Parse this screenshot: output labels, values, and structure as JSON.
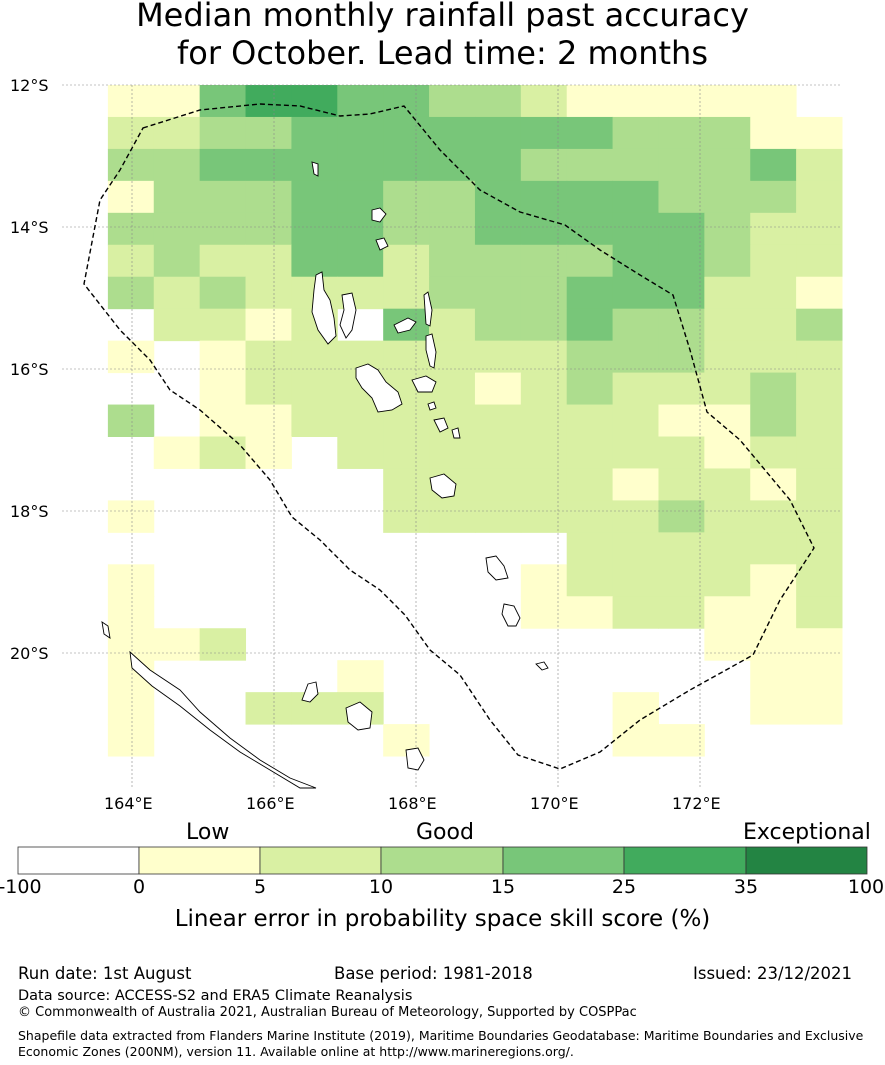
{
  "title_line1": "Median monthly rainfall past accuracy",
  "title_line2": "for October. Lead time: 2 months",
  "map": {
    "lat_labels": [
      "12°S",
      "14°S",
      "16°S",
      "18°S",
      "20°S"
    ],
    "lon_labels": [
      "164°E",
      "166°E",
      "168°E",
      "170°E",
      "172°E"
    ]
  },
  "colorbar": {
    "category_labels": [
      "Low",
      "Good",
      "Exceptional"
    ],
    "ticks": [
      "-100",
      "0",
      "5",
      "10",
      "15",
      "25",
      "35",
      "100"
    ],
    "colors": [
      "#ffffff",
      "#ffffcc",
      "#d9f0a3",
      "#addd8e",
      "#78c679",
      "#41ab5d",
      "#238443"
    ],
    "title": "Linear error in probability space skill score (%)"
  },
  "footer": {
    "run_date": "Run date: 1st August",
    "base_period": "Base period: 1981-2018",
    "issued": "Issued: 23/12/2021",
    "data_source": "Data source: ACCESS-S2 and ERA5 Climate Reanalysis",
    "copyright": "© Commonwealth of Australia 2021, Australian Bureau of Meteorology, Supported by COSPPac",
    "shapefile": "Shapefile data extracted from Flanders Marine Institute (2019), Maritime Boundaries Geodatabase: Maritime Boundaries and Exclusive Economic Zones (200NM), version 11. Available online at http://www.marineregions.org/."
  },
  "grid_data": {
    "legend": {
      "0": "<0",
      "1": "0-5",
      "2": "5-10",
      "3": "10-15",
      "4": "15-25",
      "5": "25-35",
      "6": ">35"
    },
    "rows": [
      "01145544332111110",
      "02233444444433311",
      "03344444443333342",
      "01333443344443332",
      "03333443344444322",
      "02322442333344322",
      "03232222333444221",
      "00221204233433223",
      "01012222222333222",
      "00012222212322232",
      "03011222222221132",
      "00121022222222122",
      "00000002222212212",
      "01000002222223222",
      "00000000000222222",
      "01000000001222212",
      "01000000001122112",
      "01120000000000111",
      "01000010000000011",
      "01002220000010011",
      "01000001000011000",
      "00000000000000000"
    ]
  }
}
